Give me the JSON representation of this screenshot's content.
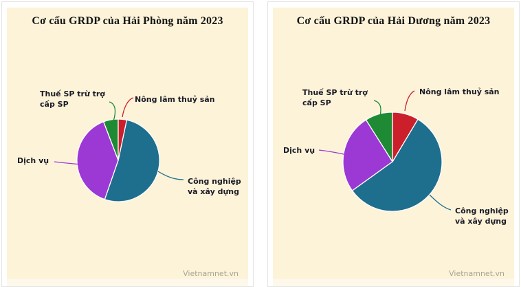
{
  "page": {
    "background": "#ffffff",
    "panel_background": "#fcf3d9",
    "panel_footer_background": "#fdf8e9",
    "panel_border_color": "#e3e3e3",
    "watermark": "Vietnamnet.vn",
    "watermark_color": "#a9a593",
    "title_color": "#151515",
    "label_color": "#1b1b26"
  },
  "chart_data": [
    {
      "type": "pie",
      "title": "Cơ cấu GRDP của Hải Phòng năm 2023",
      "labels": [
        "Nông lâm thuỷ sản",
        "Công nghiệp và xây dựng",
        "Dịch vụ",
        "Thuế SP trừ trợ cấp SP"
      ],
      "values": [
        3.3,
        52.0,
        38.9,
        5.8
      ],
      "unit": "%",
      "colors": [
        "#cb1f2b",
        "#1e6e8e",
        "#9c38d3",
        "#1f8a34"
      ],
      "start_angle_deg": 0,
      "direction": "clockwise",
      "legend_position": "none",
      "label_style": "callouts with colored leader lines",
      "slice_border_color": "#ffffff"
    },
    {
      "type": "pie",
      "title": "Cơ cấu GRDP của Hải Dương năm 2023",
      "labels": [
        "Nông lâm thuỷ sản",
        "Công nghiệp và xây dựng",
        "Dịch vụ",
        "Thuế SP trừ trợ cấp SP"
      ],
      "values": [
        8.6,
        56.5,
        25.9,
        9.0
      ],
      "unit": "%",
      "colors": [
        "#cb1f2b",
        "#1e6e8e",
        "#9c38d3",
        "#1f8a34"
      ],
      "start_angle_deg": 0,
      "direction": "clockwise",
      "legend_position": "none",
      "label_style": "callouts with colored leader lines",
      "slice_border_color": "#ffffff"
    }
  ]
}
